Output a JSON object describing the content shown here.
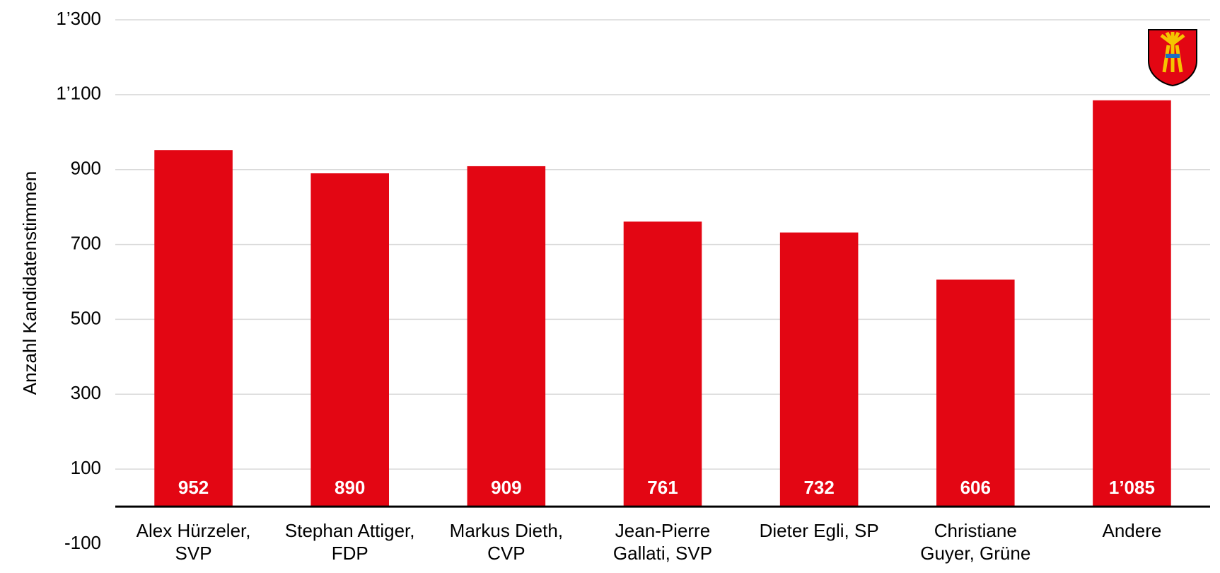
{
  "chart_data": {
    "type": "bar",
    "y_label": "Anzahl Kandidatenstimmen",
    "categories": [
      "Alex Hürzeler, SVP",
      "Stephan Attiger, FDP",
      "Markus Dieth, CVP",
      "Jean-Pierre Gallati, SVP",
      "Dieter Egli, SP",
      "Christiane Guyer, Grüne",
      "Andere"
    ],
    "values": [
      952,
      890,
      909,
      761,
      732,
      606,
      1085
    ],
    "value_labels": [
      "952",
      "890",
      "909",
      "761",
      "732",
      "606",
      "1’085"
    ],
    "color": "#e30613",
    "ylim": [
      -100,
      1300
    ],
    "yticks": [
      -100,
      100,
      300,
      500,
      700,
      900,
      {
        "value": 1100,
        "label": "1’100"
      },
      {
        "value": 1300,
        "label": "1’300"
      }
    ],
    "grid": true
  }
}
